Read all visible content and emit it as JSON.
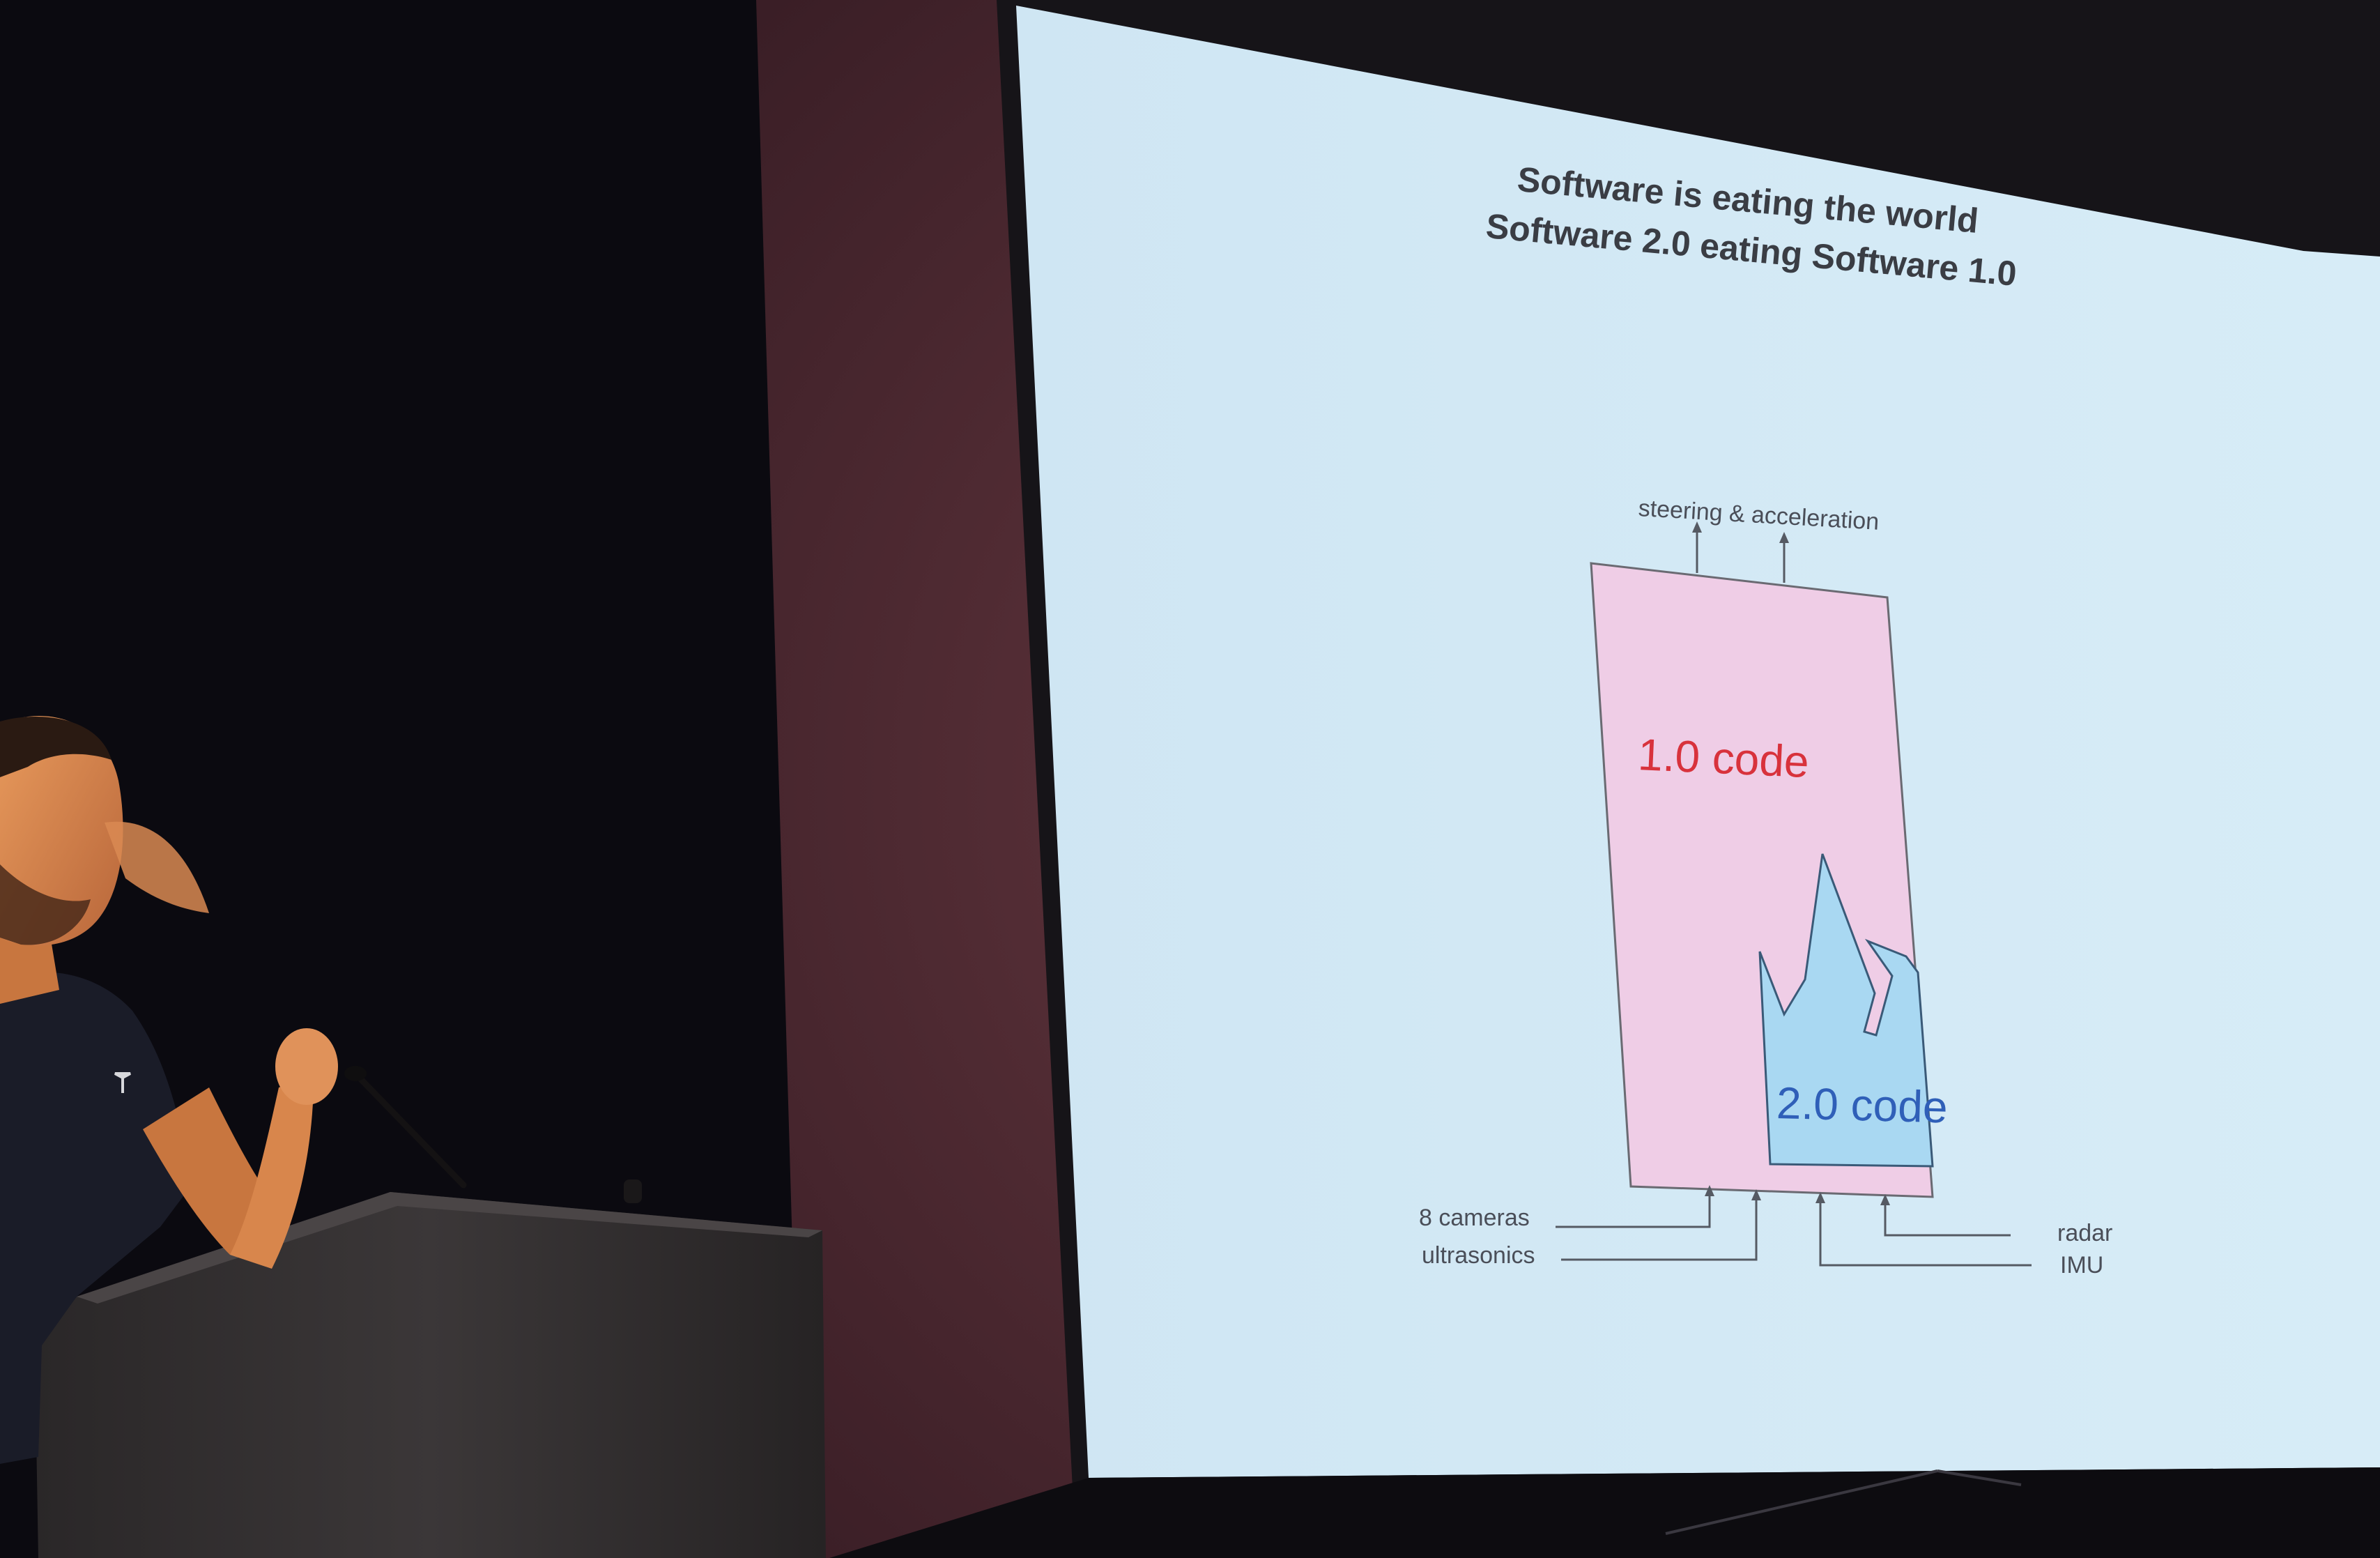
{
  "slide": {
    "title_line1": "Software is eating the world",
    "title_line2": "Software 2.0 eating Software 1.0",
    "output_label": "steering & acceleration",
    "box_1_label": "1.0 code",
    "box_2_label": "2.0 code",
    "inputs": {
      "cameras": "8 cameras",
      "ultrasonics": "ultrasonics",
      "radar": "radar",
      "imu": "IMU"
    }
  },
  "colors": {
    "slide_background": "#d2e8f4",
    "box_1_fill": "#efcde6",
    "box_2_fill": "#a9d8f2",
    "box_1_text": "#d8323c",
    "box_2_text": "#2f5fb8",
    "stage_wall": "#5a3038",
    "room_dark": "#0b0a10"
  },
  "scene": {
    "presenter": "presenter",
    "podium": "podium",
    "microphone": "microphone",
    "projection_screen": "projection-screen"
  }
}
